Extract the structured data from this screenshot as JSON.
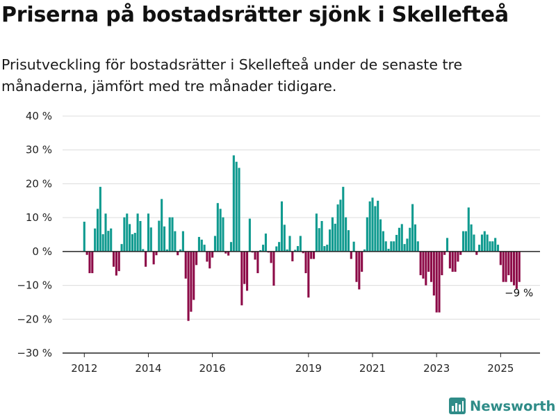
{
  "header": {
    "title": "Priserna på bostadsrätter sjönk i Skellefteå",
    "subtitle": "Prisutveckling för bostadsrätter i Skellefteå under de senaste tre månaderna, jämfört med tre månader tidigare."
  },
  "brand": {
    "name": "Newsworthy",
    "icon": "bar-chart-logo-icon",
    "color": "#2f8c88"
  },
  "colors": {
    "positive": "#0f9a8f",
    "negative": "#8c0a47",
    "zero_line": "#222222",
    "grid": "#dcdcdc"
  },
  "chart_data": {
    "type": "bar",
    "frequency": "monthly",
    "start": "2012-01",
    "ylim": [
      -30,
      40
    ],
    "yticks": [
      -30,
      -20,
      -10,
      0,
      10,
      20,
      30,
      40
    ],
    "ytick_labels": [
      "−30 %",
      "−20 %",
      "−10 %",
      "0 %",
      "10 %",
      "20 %",
      "30 %",
      "40 %"
    ],
    "xticks": [
      "2012",
      "2014",
      "2016",
      "2019",
      "2021",
      "2023",
      "2025"
    ],
    "grid": true,
    "end_label": "−9 %",
    "values": [
      8.8,
      -1.0,
      -6.4,
      -6.4,
      6.8,
      12.6,
      19.1,
      5.1,
      11.2,
      6.1,
      6.8,
      -4.5,
      -7.1,
      -5.8,
      2.2,
      10.1,
      11.2,
      8.1,
      5.1,
      5.5,
      11.2,
      9.0,
      0.7,
      -4.5,
      11.2,
      7.1,
      -3.8,
      -1.1,
      9.1,
      15.5,
      7.4,
      0.6,
      10.1,
      10.1,
      6.0,
      -1.1,
      0.6,
      6.0,
      -8.0,
      -20.5,
      -17.8,
      -14.3,
      -4.0,
      4.3,
      3.5,
      2.0,
      -3.0,
      -5.0,
      -1.8,
      4.6,
      14.3,
      12.6,
      10.1,
      -0.6,
      -1.2,
      2.8,
      28.4,
      26.5,
      24.7,
      -15.9,
      -9.6,
      -11.6,
      9.7,
      -0.3,
      -2.4,
      -6.4,
      0.4,
      2.0,
      5.3,
      -0.3,
      -3.4,
      -10.1,
      1.5,
      2.8,
      14.8,
      7.9,
      0.6,
      4.6,
      -2.9,
      0.5,
      1.6,
      4.6,
      -0.5,
      -6.4,
      -13.6,
      -2.2,
      -2.2,
      11.2,
      6.9,
      9.0,
      1.6,
      2.0,
      6.5,
      10.1,
      8.2,
      13.9,
      15.3,
      19.1,
      10.1,
      6.3,
      -2.2,
      2.9,
      -9.0,
      -11.2,
      -6.0,
      0.6,
      10.1,
      14.8,
      15.9,
      13.4,
      15.0,
      9.5,
      6.0,
      3.0,
      0.8,
      3.0,
      3.0,
      4.9,
      7.0,
      8.1,
      2.2,
      3.8,
      7.0,
      14.0,
      8.0,
      3.0,
      -7.0,
      -8.0,
      -10.0,
      -6.0,
      -9.0,
      -13.0,
      -18.0,
      -18.0,
      -7.0,
      -1.0,
      4.0,
      -5.0,
      -6.0,
      -6.0,
      -3.0,
      -1.0,
      6.0,
      6.0,
      13.0,
      8.0,
      5.0,
      -1.0,
      2.0,
      5.0,
      6.0,
      5.0,
      3.0,
      3.0,
      4.0,
      2.0,
      -4.0,
      -9.0,
      -9.0,
      -7.0,
      -9.0,
      -10.0,
      -11.0,
      -9.0
    ]
  }
}
